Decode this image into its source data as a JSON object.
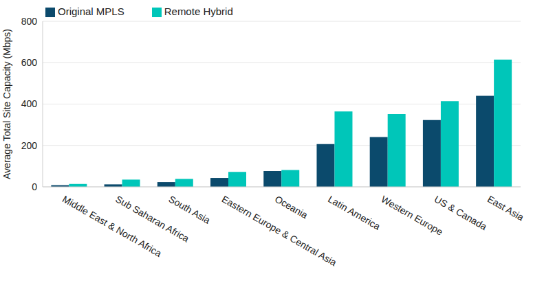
{
  "chart_data": {
    "type": "bar",
    "y_label": "Average Total Site Capacity (Mbps)",
    "categories": [
      "Middle East & North Africa",
      "Sub Saharan Africa",
      "South Asia",
      "Eastern Europe & Central Asia",
      "Oceania",
      "Latin America",
      "Western Europe",
      "US & Canada",
      "East Asia"
    ],
    "series": [
      {
        "name": "Original MPLS",
        "color": "#0b4a6c",
        "values": [
          8,
          12,
          23,
          43,
          76,
          207,
          241,
          323,
          440
        ]
      },
      {
        "name": "Remote Hybrid",
        "color": "#00c6b9",
        "values": [
          14,
          35,
          38,
          72,
          81,
          364,
          352,
          414,
          615
        ]
      }
    ],
    "ylim": [
      0,
      800
    ],
    "yticks": [
      0,
      200,
      400,
      600,
      800
    ],
    "grid": true,
    "legend": "top-left"
  }
}
